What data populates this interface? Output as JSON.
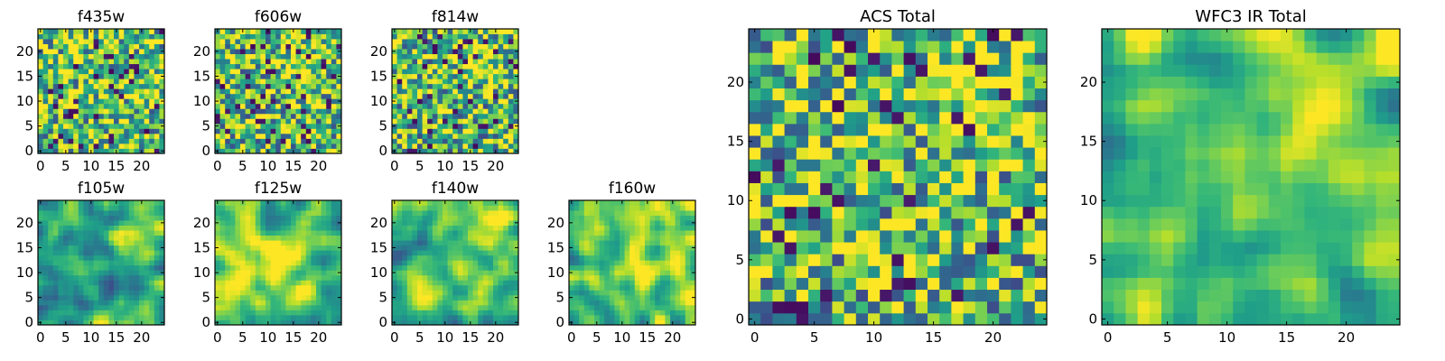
{
  "colormap": "viridis",
  "colors": {
    "frame": "#000000",
    "background": "#ffffff"
  },
  "chart_data": [
    {
      "type": "heatmap",
      "title": "f435w",
      "grid_size": 25,
      "xlim": [
        0,
        24
      ],
      "ylim": [
        0,
        24
      ],
      "xticks": [
        0,
        5,
        10,
        15,
        20
      ],
      "yticks": [
        0,
        5,
        10,
        15,
        20
      ],
      "grid": false,
      "texture": "noisy",
      "seed": 11,
      "mean": 0.68
    },
    {
      "type": "heatmap",
      "title": "f606w",
      "grid_size": 25,
      "xlim": [
        0,
        24
      ],
      "ylim": [
        0,
        24
      ],
      "xticks": [
        0,
        5,
        10,
        15,
        20
      ],
      "yticks": [
        0,
        5,
        10,
        15,
        20
      ],
      "grid": false,
      "texture": "noisy",
      "seed": 23,
      "mean": 0.66,
      "hotspot": [
        17,
        17
      ]
    },
    {
      "type": "heatmap",
      "title": "f814w",
      "grid_size": 25,
      "xlim": [
        0,
        24
      ],
      "ylim": [
        0,
        24
      ],
      "xticks": [
        0,
        5,
        10,
        15,
        20
      ],
      "yticks": [
        0,
        5,
        10,
        15,
        20
      ],
      "grid": false,
      "texture": "noisy",
      "seed": 37,
      "mean": 0.64,
      "hotspot": [
        18,
        18
      ]
    },
    {
      "type": "heatmap",
      "title": "f105w",
      "grid_size": 25,
      "xlim": [
        0,
        24
      ],
      "ylim": [
        0,
        24
      ],
      "xticks": [
        0,
        5,
        10,
        15,
        20
      ],
      "yticks": [
        0,
        5,
        10,
        15,
        20
      ],
      "grid": false,
      "texture": "smooth",
      "seed": 41,
      "mean": 0.62,
      "hotspot": [
        18,
        17
      ]
    },
    {
      "type": "heatmap",
      "title": "f125w",
      "grid_size": 25,
      "xlim": [
        0,
        24
      ],
      "ylim": [
        0,
        24
      ],
      "xticks": [
        0,
        5,
        10,
        15,
        20
      ],
      "yticks": [
        0,
        5,
        10,
        15,
        20
      ],
      "grid": false,
      "texture": "smooth",
      "seed": 53,
      "mean": 0.74,
      "hotspot": [
        12,
        12
      ]
    },
    {
      "type": "heatmap",
      "title": "f140w",
      "grid_size": 25,
      "xlim": [
        0,
        24
      ],
      "ylim": [
        0,
        24
      ],
      "xticks": [
        0,
        5,
        10,
        15,
        20
      ],
      "yticks": [
        0,
        5,
        10,
        15,
        20
      ],
      "grid": false,
      "texture": "smooth",
      "seed": 67,
      "mean": 0.66,
      "hotspot": [
        20,
        18
      ]
    },
    {
      "type": "heatmap",
      "title": "f160w",
      "grid_size": 25,
      "xlim": [
        0,
        24
      ],
      "ylim": [
        0,
        24
      ],
      "xticks": [
        0,
        5,
        10,
        15,
        20
      ],
      "yticks": [
        0,
        5,
        10,
        15,
        20
      ],
      "grid": false,
      "texture": "smooth",
      "seed": 79,
      "mean": 0.72,
      "hotspot": [
        14,
        12
      ]
    },
    {
      "type": "heatmap",
      "title": "ACS Total",
      "grid_size": 25,
      "xlim": [
        0,
        24
      ],
      "ylim": [
        0,
        24
      ],
      "xticks": [
        0,
        5,
        10,
        15,
        20
      ],
      "yticks": [
        0,
        5,
        10,
        15,
        20
      ],
      "grid": false,
      "texture": "noisy",
      "seed": 97,
      "mean": 0.64,
      "hotspot": [
        18,
        20
      ]
    },
    {
      "type": "heatmap",
      "title": "WFC3 IR Total",
      "grid_size": 25,
      "xlim": [
        0,
        24
      ],
      "ylim": [
        0,
        24
      ],
      "xticks": [
        0,
        5,
        10,
        15,
        20
      ],
      "yticks": [
        0,
        5,
        10,
        15,
        20
      ],
      "grid": false,
      "texture": "smooth",
      "seed": 113,
      "mean": 0.72,
      "hotspot": [
        18,
        19
      ]
    }
  ]
}
